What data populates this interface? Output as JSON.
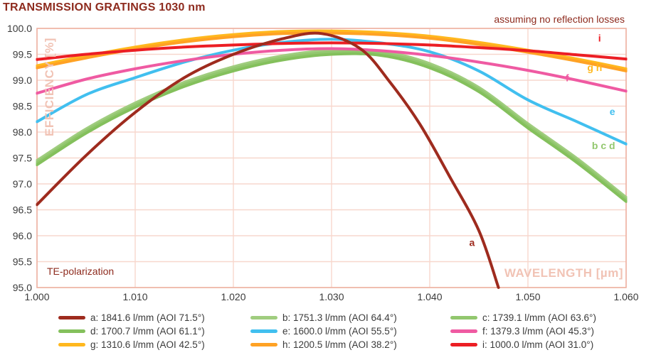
{
  "title": "TRANSMISSION GRATINGS 1030 nm",
  "annotations": {
    "top_right": "assuming no reflection losses",
    "bottom_left": "TE-polarization"
  },
  "colors": {
    "heading_text": "#8E2B1E",
    "axis_label_text": "#F1C3B5",
    "grid": "#F7D7CD",
    "plot_border": "#EEB2A3",
    "tick_text": "#3B3B3B",
    "background": "#FFFFFF"
  },
  "chart_data": {
    "type": "line",
    "title": "TRANSMISSION GRATINGS 1030 nm",
    "xlabel": "WAVELENGTH [µm]",
    "ylabel": "EFFICIENCY [%]",
    "xlim": [
      1.0,
      1.06
    ],
    "ylim": [
      95.0,
      100.0
    ],
    "grid": true,
    "x_ticks": [
      "1.000",
      "1.010",
      "1.020",
      "1.030",
      "1.040",
      "1.050",
      "1.060"
    ],
    "y_ticks": [
      "100.0",
      "99.5",
      "99.0",
      "98.5",
      "98.0",
      "97.5",
      "97.0",
      "96.5",
      "96.0",
      "95.5",
      "95.0"
    ],
    "series": [
      {
        "id": "b",
        "name": "b: 1751.3 l/mm (AOI 64.4°)",
        "color": "#A0CD7F",
        "x": [
          1.0,
          1.005,
          1.01,
          1.015,
          1.02,
          1.025,
          1.03,
          1.035,
          1.04,
          1.045,
          1.05,
          1.055,
          1.06
        ],
        "values": [
          97.45,
          98.06,
          98.56,
          98.96,
          99.26,
          99.47,
          99.58,
          99.56,
          99.32,
          98.86,
          98.16,
          97.49,
          96.74
        ]
      },
      {
        "id": "c",
        "name": "c: 1739.1 l/mm (AOI 63.6°)",
        "color": "#92C76E",
        "x": [
          1.0,
          1.005,
          1.01,
          1.015,
          1.02,
          1.025,
          1.03,
          1.035,
          1.04,
          1.045,
          1.05,
          1.055,
          1.06
        ],
        "values": [
          97.41,
          98.02,
          98.52,
          98.92,
          99.22,
          99.43,
          99.54,
          99.52,
          99.28,
          98.82,
          98.12,
          97.45,
          96.7
        ]
      },
      {
        "id": "d",
        "name": "d: 1700.7 l/mm (AOI 61.1°)",
        "color": "#84C05C",
        "x": [
          1.0,
          1.005,
          1.01,
          1.015,
          1.02,
          1.025,
          1.03,
          1.035,
          1.04,
          1.045,
          1.05,
          1.055,
          1.06
        ],
        "values": [
          97.37,
          97.98,
          98.48,
          98.88,
          99.18,
          99.39,
          99.5,
          99.48,
          99.24,
          98.78,
          98.08,
          97.41,
          96.66
        ]
      },
      {
        "id": "e",
        "name": "e: 1600.0 l/mm (AOI 55.5°)",
        "color": "#41BFEF",
        "x": [
          1.0,
          1.005,
          1.01,
          1.015,
          1.02,
          1.025,
          1.03,
          1.035,
          1.04,
          1.045,
          1.05,
          1.055,
          1.06
        ],
        "values": [
          98.2,
          98.72,
          99.05,
          99.35,
          99.58,
          99.73,
          99.79,
          99.72,
          99.55,
          99.18,
          98.62,
          98.2,
          97.77
        ]
      },
      {
        "id": "f",
        "name": "f: 1379.3 l/mm (AOI 45.3°)",
        "color": "#EF5AA2",
        "x": [
          1.0,
          1.005,
          1.01,
          1.015,
          1.02,
          1.025,
          1.03,
          1.035,
          1.04,
          1.045,
          1.05,
          1.055,
          1.06
        ],
        "values": [
          98.75,
          99.02,
          99.22,
          99.38,
          99.5,
          99.58,
          99.61,
          99.57,
          99.48,
          99.35,
          99.19,
          99.0,
          98.79
        ]
      },
      {
        "id": "g",
        "name": "g: 1310.6 l/mm (AOI 42.5°)",
        "color": "#FFB81E",
        "x": [
          1.0,
          1.005,
          1.01,
          1.015,
          1.02,
          1.025,
          1.03,
          1.035,
          1.04,
          1.045,
          1.05,
          1.055,
          1.06
        ],
        "values": [
          99.28,
          99.47,
          99.64,
          99.78,
          99.88,
          99.94,
          99.95,
          99.92,
          99.85,
          99.73,
          99.58,
          99.41,
          99.22
        ]
      },
      {
        "id": "h",
        "name": "h: 1200.5 l/mm (AOI 38.2°)",
        "color": "#FFA224",
        "x": [
          1.0,
          1.005,
          1.01,
          1.015,
          1.02,
          1.025,
          1.03,
          1.035,
          1.04,
          1.045,
          1.05,
          1.055,
          1.06
        ],
        "values": [
          99.24,
          99.43,
          99.6,
          99.74,
          99.84,
          99.9,
          99.91,
          99.88,
          99.81,
          99.69,
          99.54,
          99.37,
          99.18
        ]
      },
      {
        "id": "i",
        "name": "i: 1000.0 l/mm (AOI 31.0°)",
        "color": "#EC1E24",
        "x": [
          1.0,
          1.005,
          1.01,
          1.015,
          1.02,
          1.025,
          1.03,
          1.035,
          1.04,
          1.045,
          1.05,
          1.055,
          1.06
        ],
        "values": [
          99.4,
          99.5,
          99.58,
          99.64,
          99.68,
          99.71,
          99.72,
          99.71,
          99.68,
          99.63,
          99.57,
          99.49,
          99.41
        ]
      },
      {
        "id": "a",
        "name": "a: 1841.6 l/mm (AOI 71.5°)",
        "color": "#9E2B1E",
        "x": [
          1.0,
          1.005,
          1.01,
          1.015,
          1.02,
          1.025,
          1.029,
          1.033,
          1.036,
          1.039,
          1.042,
          1.045,
          1.047
        ],
        "values": [
          96.6,
          97.55,
          98.38,
          99.05,
          99.5,
          99.8,
          99.9,
          99.6,
          98.95,
          98.15,
          97.15,
          96.1,
          95.0
        ]
      }
    ],
    "curve_labels": [
      {
        "text": "a",
        "x": 1.0443,
        "y": 95.8,
        "color": "#9E2B1E"
      },
      {
        "text": "b c d",
        "x": 1.0577,
        "y": 97.67,
        "color": "#92C76E"
      },
      {
        "text": "e",
        "x": 1.0586,
        "y": 98.33,
        "color": "#41BFEF"
      },
      {
        "text": "f",
        "x": 1.054,
        "y": 98.98,
        "color": "#EF5AA2"
      },
      {
        "text": "g h",
        "x": 1.0568,
        "y": 99.18,
        "color": "#FFB81E"
      },
      {
        "text": "i",
        "x": 1.0573,
        "y": 99.75,
        "color": "#EC1E24"
      }
    ],
    "legend_position": "bottom"
  },
  "legend": {
    "items": [
      {
        "id": "a",
        "label": "a: 1841.6 l/mm (AOI 71.5°)",
        "color": "#9E2B1E"
      },
      {
        "id": "b",
        "label": "b: 1751.3 l/mm (AOI 64.4°)",
        "color": "#A0CD7F"
      },
      {
        "id": "c",
        "label": "c: 1739.1 l/mm (AOI 63.6°)",
        "color": "#92C76E"
      },
      {
        "id": "d",
        "label": "d: 1700.7 l/mm (AOI 61.1°)",
        "color": "#84C05C"
      },
      {
        "id": "e",
        "label": "e: 1600.0 l/mm (AOI 55.5°)",
        "color": "#41BFEF"
      },
      {
        "id": "f",
        "label": "f: 1379.3 l/mm (AOI 45.3°)",
        "color": "#EF5AA2"
      },
      {
        "id": "g",
        "label": "g: 1310.6 l/mm (AOI 42.5°)",
        "color": "#FFB81E"
      },
      {
        "id": "h",
        "label": "h: 1200.5 l/mm (AOI 38.2°)",
        "color": "#FFA224"
      },
      {
        "id": "i",
        "label": "i: 1000.0 l/mm (AOI 31.0°)",
        "color": "#EC1E24"
      }
    ]
  }
}
